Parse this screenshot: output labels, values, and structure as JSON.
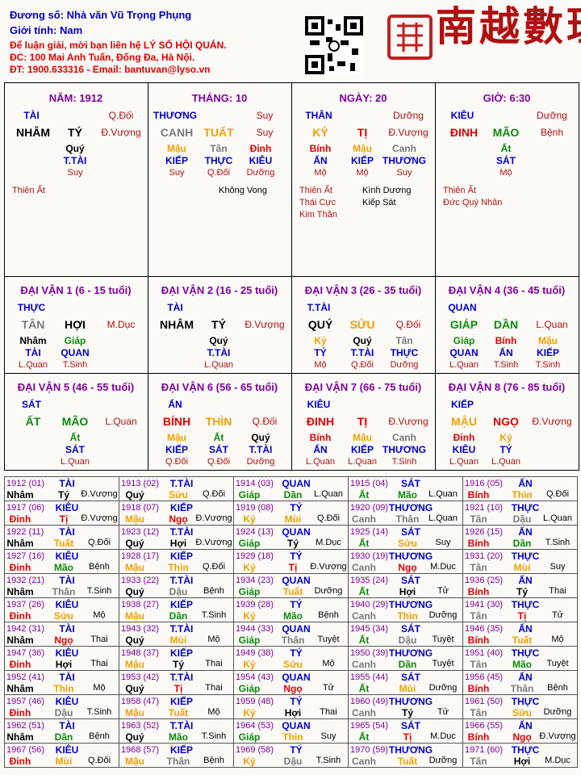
{
  "header": {
    "lines": [
      "Đương số: Nhà văn Vũ Trọng Phụng",
      "Giới tính:  Nam",
      "Để luận giải, mời bạn liên hệ LÝ SỐ HỘI QUÁN.",
      "ĐC: 100 Mai Anh Tuấn, Đống Đa, Hà Nội.",
      "ĐT: 1900.633316 - Email: bantuvan@lyso.vn"
    ],
    "line_colors": [
      "b",
      "b",
      "r",
      "r",
      "r"
    ],
    "logo": "南越數理"
  },
  "palette": {
    "k": "#000000",
    "g": "#0a8a0a",
    "r": "#e00000",
    "o": "#f0a000",
    "s": "#7a7a7a",
    "b": "#0000cc",
    "d": "#b01010",
    "p": "#8000a0"
  },
  "pillars": [
    {
      "title": "NĂM: 1912",
      "star": "TÀI",
      "star_status": "Q.Đối",
      "stem": "NHÂM",
      "branch": "TÝ",
      "branch_status": "Đ.Vượng",
      "colors": [
        "k",
        "k"
      ],
      "hidden": [
        "Quý"
      ],
      "hidden_colors": [
        "k"
      ],
      "hidden_stars": [
        "T.TÀI"
      ],
      "hidden_status": [
        "Suy"
      ],
      "stars_left": [
        "Thiên Ất"
      ],
      "stars_right": []
    },
    {
      "title": "THÁNG: 10",
      "star": "THƯƠNG",
      "star_status": "Suy",
      "stem": "CANH",
      "branch": "TUẤT",
      "branch_status": "Suy",
      "colors": [
        "s",
        "o"
      ],
      "hidden": [
        "Mậu",
        "Tân",
        "Đinh"
      ],
      "hidden_colors": [
        "o",
        "s",
        "r"
      ],
      "hidden_stars": [
        "KIẾP",
        "THỰC",
        "KIÊU"
      ],
      "hidden_status": [
        "Suy",
        "Q.Đối",
        "Dưỡng"
      ],
      "stars_left": [],
      "stars_right": [
        "Không Vong"
      ]
    },
    {
      "title": "NGÀY: 20",
      "star": "THÂN",
      "star_status": "Dưỡng",
      "stem": "KỶ",
      "branch": "TỊ",
      "branch_status": "Đ.Vượng",
      "colors": [
        "o",
        "r"
      ],
      "hidden": [
        "Bính",
        "Mậu",
        "Canh"
      ],
      "hidden_colors": [
        "r",
        "o",
        "s"
      ],
      "hidden_stars": [
        "ẤN",
        "KIẾP",
        "THƯƠNG"
      ],
      "hidden_status": [
        "Mộ",
        "Mộ",
        "Suy"
      ],
      "stars_left": [
        "Thiên Ất",
        "Thái Cực",
        "Kim Thần"
      ],
      "stars_right": [
        "Kình Dương",
        "Kiếp Sát"
      ]
    },
    {
      "title": "GIỜ: 6:30",
      "star": "KIÊU",
      "star_status": "Dưỡng",
      "stem": "ĐINH",
      "branch": "MÃO",
      "branch_status": "Bệnh",
      "colors": [
        "r",
        "g"
      ],
      "hidden": [
        "Ất"
      ],
      "hidden_colors": [
        "g"
      ],
      "hidden_stars": [
        "SÁT"
      ],
      "hidden_status": [
        "Mộ"
      ],
      "stars_left": [
        "Thiên Ất",
        "Đức Quý Nhân"
      ],
      "stars_right": []
    }
  ],
  "dai_van": [
    {
      "title": "ĐẠI VẬN 1 (6 - 15 tuổi)",
      "star": "THỰC",
      "stem": "TÂN",
      "branch": "HỢI",
      "branch_status": "M.Dục",
      "colors": [
        "s",
        "k"
      ],
      "hidden": [
        "Nhâm",
        "Giáp"
      ],
      "hidden_colors": [
        "k",
        "g"
      ],
      "hidden_stars": [
        "TÀI",
        "QUAN"
      ],
      "hidden_status": [
        "L.Quan",
        "T.Sinh"
      ]
    },
    {
      "title": "ĐẠI VẬN 2 (16 - 25 tuổi)",
      "star": "TÀI",
      "stem": "NHÂM",
      "branch": "TÝ",
      "branch_status": "Đ.Vượng",
      "colors": [
        "k",
        "k"
      ],
      "hidden": [
        "Quý"
      ],
      "hidden_colors": [
        "k"
      ],
      "hidden_stars": [
        "T.TÀI"
      ],
      "hidden_status": [
        "L.Quan"
      ]
    },
    {
      "title": "ĐẠI VẬN 3 (26 - 35 tuổi)",
      "star": "T.TÀI",
      "stem": "QUÝ",
      "branch": "SỬU",
      "branch_status": "Q.Đối",
      "colors": [
        "k",
        "o"
      ],
      "hidden": [
        "Kỷ",
        "Quý",
        "Tân"
      ],
      "hidden_colors": [
        "o",
        "k",
        "s"
      ],
      "hidden_stars": [
        "TÝ",
        "T.TÀI",
        "THỰC"
      ],
      "hidden_status": [
        "Mộ",
        "Q.Đối",
        "Dưỡng"
      ]
    },
    {
      "title": "ĐẠI VẬN 4 (36 - 45 tuổi)",
      "star": "QUAN",
      "stem": "GIÁP",
      "branch": "DẦN",
      "branch_status": "L.Quan",
      "colors": [
        "g",
        "g"
      ],
      "hidden": [
        "Giáp",
        "Bính",
        "Mậu"
      ],
      "hidden_colors": [
        "g",
        "r",
        "o"
      ],
      "hidden_stars": [
        "QUAN",
        "ẤN",
        "KIẾP"
      ],
      "hidden_status": [
        "L.Quan",
        "T.Sinh",
        "T.Sinh"
      ]
    },
    {
      "title": "ĐẠI VẬN 5 (46 - 55 tuổi)",
      "star": "SÁT",
      "stem": "ẤT",
      "branch": "MÃO",
      "branch_status": "L.Quan",
      "colors": [
        "g",
        "g"
      ],
      "hidden": [
        "Ất"
      ],
      "hidden_colors": [
        "g"
      ],
      "hidden_stars": [
        "SÁT"
      ],
      "hidden_status": [
        "L.Quan"
      ]
    },
    {
      "title": "ĐẠI VẬN 6 (56 - 65 tuổi)",
      "star": "ẤN",
      "stem": "BÍNH",
      "branch": "THÌN",
      "branch_status": "Q.Đối",
      "colors": [
        "r",
        "o"
      ],
      "hidden": [
        "Mậu",
        "Ất",
        "Quý"
      ],
      "hidden_colors": [
        "o",
        "g",
        "k"
      ],
      "hidden_stars": [
        "KIẾP",
        "SÁT",
        "T.TÀI"
      ],
      "hidden_status": [
        "Q.Đối",
        "Q.Đối",
        "Dưỡng"
      ]
    },
    {
      "title": "ĐẠI VẬN 7 (66 - 75 tuổi)",
      "star": "KIÊU",
      "stem": "ĐINH",
      "branch": "TỊ",
      "branch_status": "Đ.Vượng",
      "colors": [
        "r",
        "r"
      ],
      "hidden": [
        "Bính",
        "Mậu",
        "Canh"
      ],
      "hidden_colors": [
        "r",
        "o",
        "s"
      ],
      "hidden_stars": [
        "ẤN",
        "KIẾP",
        "THƯƠNG"
      ],
      "hidden_status": [
        "L.Quan",
        "L.Quan",
        "T.Sinh"
      ]
    },
    {
      "title": "ĐẠI VẬN 8 (76 - 85 tuổi)",
      "star": "KIẾP",
      "stem": "MẬU",
      "branch": "NGỌ",
      "branch_status": "Đ.Vượng",
      "colors": [
        "o",
        "r"
      ],
      "hidden": [
        "Đinh",
        "Kỷ"
      ],
      "hidden_colors": [
        "r",
        "o"
      ],
      "hidden_stars": [
        "KIÊU",
        "TÝ"
      ],
      "hidden_status": [
        "L.Quan",
        "L.Quan"
      ]
    }
  ],
  "years": [
    [
      [
        "1912 (01)",
        "TÀI",
        "Nhâm",
        "Tý",
        "Đ.Vượng",
        "k",
        "k"
      ],
      [
        "1913 (02)",
        "T.TÀI",
        "Quý",
        "Sửu",
        "Q.Đối",
        "k",
        "o"
      ],
      [
        "1914 (03)",
        "QUAN",
        "Giáp",
        "Dần",
        "L.Quan",
        "g",
        "g"
      ],
      [
        "1915 (04)",
        "SÁT",
        "Ất",
        "Mão",
        "L.Quan",
        "g",
        "g"
      ],
      [
        "1916 (05)",
        "ẤN",
        "Bính",
        "Thìn",
        "Q.Đối",
        "r",
        "o"
      ]
    ],
    [
      [
        "1917 (06)",
        "KIÊU",
        "Đinh",
        "Tị",
        "Đ.Vượng",
        "r",
        "r"
      ],
      [
        "1918 (07)",
        "KIẾP",
        "Mậu",
        "Ngọ",
        "Đ.Vượng",
        "o",
        "r"
      ],
      [
        "1919 (08)",
        "TÝ",
        "Kỷ",
        "Mùi",
        "Q.Đối",
        "o",
        "o"
      ],
      [
        "1920 (09)",
        "THƯƠNG",
        "Canh",
        "Thân",
        "L.Quan",
        "s",
        "s"
      ],
      [
        "1921 (10)",
        "THỰC",
        "Tân",
        "Dậu",
        "L.Quan",
        "s",
        "s"
      ]
    ],
    [
      [
        "1922 (11)",
        "TÀI",
        "Nhâm",
        "Tuất",
        "Q.Đối",
        "k",
        "o"
      ],
      [
        "1923 (12)",
        "T.TÀI",
        "Quý",
        "Hợi",
        "Đ.Vượng",
        "k",
        "k"
      ],
      [
        "1924 (13)",
        "QUAN",
        "Giáp",
        "Tý",
        "M.Dục",
        "g",
        "k"
      ],
      [
        "1925 (14)",
        "SÁT",
        "Ất",
        "Sửu",
        "Suy",
        "g",
        "o"
      ],
      [
        "1926 (15)",
        "ẤN",
        "Bính",
        "Dần",
        "T.Sinh",
        "r",
        "g"
      ]
    ],
    [
      [
        "1927 (16)",
        "KIÊU",
        "Đinh",
        "Mão",
        "Bệnh",
        "r",
        "g"
      ],
      [
        "1928 (17)",
        "KIẾP",
        "Mậu",
        "Thìn",
        "Q.Đối",
        "o",
        "o"
      ],
      [
        "1929 (18)",
        "TÝ",
        "Kỷ",
        "Tị",
        "Đ.Vượng",
        "o",
        "r"
      ],
      [
        "1930 (19)",
        "THƯƠNG",
        "Canh",
        "Ngọ",
        "M.Dục",
        "s",
        "r"
      ],
      [
        "1931 (20)",
        "THỰC",
        "Tân",
        "Mùi",
        "Suy",
        "s",
        "o"
      ]
    ],
    [
      [
        "1932 (21)",
        "TÀI",
        "Nhâm",
        "Thân",
        "T.Sinh",
        "k",
        "s"
      ],
      [
        "1933 (22)",
        "T.TÀI",
        "Quý",
        "Dậu",
        "Bệnh",
        "k",
        "s"
      ],
      [
        "1934 (23)",
        "QUAN",
        "Giáp",
        "Tuất",
        "Dưỡng",
        "g",
        "o"
      ],
      [
        "1935 (24)",
        "SÁT",
        "Ất",
        "Hợi",
        "Tử",
        "g",
        "k"
      ],
      [
        "1936 (25)",
        "ẤN",
        "Bính",
        "Tý",
        "Thai",
        "r",
        "k"
      ]
    ],
    [
      [
        "1937 (26)",
        "KIÊU",
        "Đinh",
        "Sửu",
        "Mộ",
        "r",
        "o"
      ],
      [
        "1938 (27)",
        "KIẾP",
        "Mậu",
        "Dần",
        "T.Sinh",
        "o",
        "g"
      ],
      [
        "1939 (28)",
        "TÝ",
        "Kỷ",
        "Mão",
        "Bệnh",
        "o",
        "g"
      ],
      [
        "1940 (29)",
        "THƯƠNG",
        "Canh",
        "Thìn",
        "Dưỡng",
        "s",
        "o"
      ],
      [
        "1941 (30)",
        "THỰC",
        "Tân",
        "Tị",
        "Tử",
        "s",
        "r"
      ]
    ],
    [
      [
        "1942 (31)",
        "TÀI",
        "Nhâm",
        "Ngọ",
        "Thai",
        "k",
        "r"
      ],
      [
        "1943 (32)",
        "T.TÀI",
        "Quý",
        "Mùi",
        "Mộ",
        "k",
        "o"
      ],
      [
        "1944 (33)",
        "QUAN",
        "Giáp",
        "Thân",
        "Tuyệt",
        "g",
        "s"
      ],
      [
        "1945 (34)",
        "SÁT",
        "Ất",
        "Dậu",
        "Tuyệt",
        "g",
        "s"
      ],
      [
        "1946 (35)",
        "ẤN",
        "Bính",
        "Tuất",
        "Mộ",
        "r",
        "o"
      ]
    ],
    [
      [
        "1947 (36)",
        "KIÊU",
        "Đinh",
        "Hợi",
        "Thai",
        "r",
        "k"
      ],
      [
        "1948 (37)",
        "KIẾP",
        "Mậu",
        "Tý",
        "Thai",
        "o",
        "k"
      ],
      [
        "1949 (38)",
        "TÝ",
        "Kỷ",
        "Sửu",
        "Mộ",
        "o",
        "o"
      ],
      [
        "1950 (39)",
        "THƯƠNG",
        "Canh",
        "Dần",
        "Tuyệt",
        "s",
        "g"
      ],
      [
        "1951 (40)",
        "THỰC",
        "Tân",
        "Mão",
        "Tuyệt",
        "s",
        "g"
      ]
    ],
    [
      [
        "1952 (41)",
        "TÀI",
        "Nhâm",
        "Thìn",
        "Mộ",
        "k",
        "o"
      ],
      [
        "1953 (42)",
        "T.TÀI",
        "Quý",
        "Tị",
        "Thai",
        "k",
        "r"
      ],
      [
        "1954 (43)",
        "QUAN",
        "Giáp",
        "Ngọ",
        "Tử",
        "g",
        "r"
      ],
      [
        "1955 (44)",
        "SÁT",
        "Ất",
        "Mùi",
        "Dưỡng",
        "g",
        "o"
      ],
      [
        "1956 (45)",
        "ẤN",
        "Bính",
        "Thân",
        "Bệnh",
        "r",
        "s"
      ]
    ],
    [
      [
        "1957 (46)",
        "KIÊU",
        "Đinh",
        "Dậu",
        "T.Sinh",
        "r",
        "s"
      ],
      [
        "1958 (47)",
        "KIẾP",
        "Mậu",
        "Tuất",
        "Mộ",
        "o",
        "o"
      ],
      [
        "1959 (48)",
        "TÝ",
        "Kỷ",
        "Hợi",
        "Thai",
        "o",
        "k"
      ],
      [
        "1960 (49)",
        "THƯƠNG",
        "Canh",
        "Tý",
        "Tử",
        "s",
        "k"
      ],
      [
        "1961 (50)",
        "THỰC",
        "Tân",
        "Sửu",
        "Dưỡng",
        "s",
        "o"
      ]
    ],
    [
      [
        "1962 (51)",
        "TÀI",
        "Nhâm",
        "Dần",
        "Bệnh",
        "k",
        "g"
      ],
      [
        "1963 (52)",
        "T.TÀI",
        "Quý",
        "Mão",
        "T.Sinh",
        "k",
        "g"
      ],
      [
        "1964 (53)",
        "QUAN",
        "Giáp",
        "Thìn",
        "Suy",
        "g",
        "o"
      ],
      [
        "1965 (54)",
        "SÁT",
        "Ất",
        "Tị",
        "M.Dục",
        "g",
        "r"
      ],
      [
        "1966 (55)",
        "ẤN",
        "Bính",
        "Ngọ",
        "Đ.Vượng",
        "r",
        "r"
      ]
    ],
    [
      [
        "1967 (56)",
        "KIÊU",
        "Đinh",
        "Mùi",
        "Q.Đối",
        "r",
        "o"
      ],
      [
        "1968 (57)",
        "KIẾP",
        "Mậu",
        "Thân",
        "Bệnh",
        "o",
        "s"
      ],
      [
        "1969 (58)",
        "TÝ",
        "Kỷ",
        "Dậu",
        "T.Sinh",
        "o",
        "s"
      ],
      [
        "1970 (59)",
        "THƯƠNG",
        "Canh",
        "Tuất",
        "Dưỡng",
        "s",
        "o"
      ],
      [
        "1971 (60)",
        "THỰC",
        "Tân",
        "Hợi",
        "M.Dục",
        "s",
        "k"
      ]
    ]
  ]
}
